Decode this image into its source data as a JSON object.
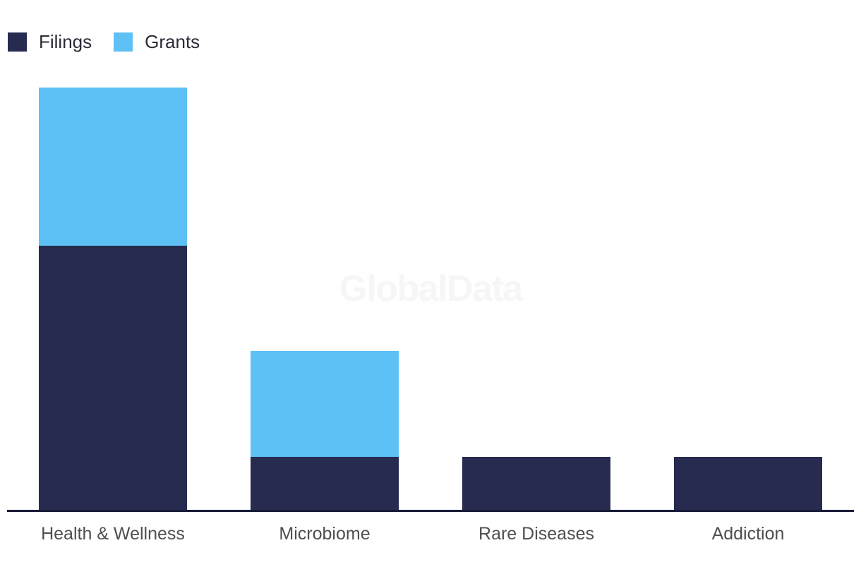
{
  "watermark": {
    "text": "GlobalData",
    "color": "#f6f6f8"
  },
  "legend": {
    "items": [
      {
        "label": "Filings",
        "color": "#272b4f"
      },
      {
        "label": "Grants",
        "color": "#5ec1f6"
      }
    ]
  },
  "chart_data": {
    "type": "bar",
    "stacked": true,
    "orientation": "vertical",
    "title": "",
    "xlabel": "",
    "ylabel": "",
    "categories": [
      "Health & Wellness",
      "Microbiome",
      "Rare Diseases",
      "Addiction"
    ],
    "series": [
      {
        "name": "Filings",
        "color": "#272b4f",
        "values": [
          75,
          15,
          15,
          15
        ]
      },
      {
        "name": "Grants",
        "color": "#5ec1f6",
        "values": [
          45,
          30,
          0,
          0
        ]
      }
    ],
    "totals": [
      120,
      45,
      15,
      15
    ],
    "ylim": [
      0,
      120
    ],
    "y_axis_visible": false,
    "x_axis_line_visible": true,
    "gridlines": false,
    "legend_position": "top-left"
  },
  "colors": {
    "background": "#ffffff",
    "axis_line": "#171b36",
    "category_label": "#4f4f4f",
    "legend_label": "#2b2b38"
  }
}
